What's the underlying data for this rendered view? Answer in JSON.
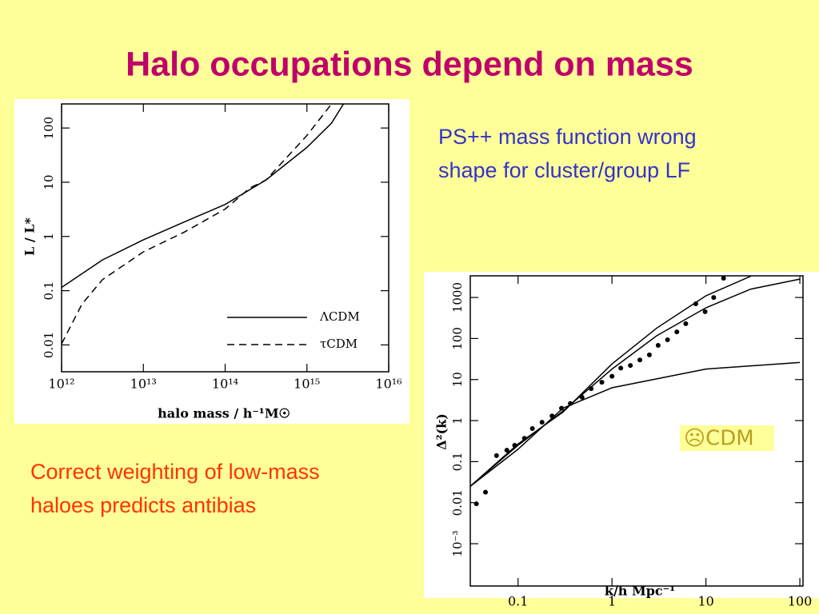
{
  "title": "Halo occupations depend on mass",
  "note_right": [
    "PS++ mass function wrong",
    "shape for cluster/group LF"
  ],
  "note_left": [
    "Correct weighting of low-mass",
    "haloes predicts antibias"
  ],
  "chart_data": [
    {
      "type": "line",
      "xscale": "log",
      "yscale": "log",
      "xlabel": "halo mass / h⁻¹M☉",
      "ylabel": "L / L*",
      "xlim": [
        1000000000000.0,
        1e+16
      ],
      "ylim": [
        0.0032,
        278
      ],
      "xticks": [
        {
          "value": 1000000000000.0,
          "label": "10¹²"
        },
        {
          "value": 10000000000000.0,
          "label": "10¹³"
        },
        {
          "value": 100000000000000.0,
          "label": "10¹⁴"
        },
        {
          "value": 1000000000000000.0,
          "label": "10¹⁵"
        },
        {
          "value": 1e+16,
          "label": "10¹⁶"
        }
      ],
      "yticks": [
        0.01,
        0.1,
        1,
        10,
        100
      ],
      "legend": "lower right",
      "series": [
        {
          "name": "ΛCDM",
          "color": "#000000",
          "dash": false,
          "x": [
            1000000000000.0,
            3160000000000.0,
            10000000000000.0,
            31600000000000.0,
            100000000000000.0,
            316000000000000.0,
            1000000000000000.0,
            2000000000000000.0,
            2800000000000000.0
          ],
          "values": [
            0.115,
            0.37,
            0.87,
            1.85,
            3.9,
            11,
            44,
            123,
            278
          ]
        },
        {
          "name": "τCDM",
          "color": "#000000",
          "dash": true,
          "x": [
            1000000000000.0,
            1780000000000.0,
            3160000000000.0,
            10000000000000.0,
            31600000000000.0,
            100000000000000.0,
            200000000000000.0,
            316000000000000.0,
            1000000000000000.0,
            2000000000000000.0
          ],
          "values": [
            0.0105,
            0.057,
            0.16,
            0.52,
            1.2,
            3.2,
            7.8,
            11,
            73,
            278
          ]
        }
      ]
    },
    {
      "type": "line",
      "xscale": "log",
      "yscale": "log",
      "xlabel": "k/h Mpc⁻¹",
      "ylabel": "Δ²(k)",
      "annotation": "☹CDM",
      "xlim": [
        0.031,
        108
      ],
      "ylim": [
        9.3e-05,
        3370
      ],
      "xticks": [
        0.1,
        1,
        10,
        100
      ],
      "yticks": [
        {
          "value": 0.001,
          "label": "10⁻³"
        },
        0.01,
        0.1,
        1,
        10,
        100,
        1000
      ],
      "series": [
        {
          "color": "#000000",
          "x": [
            0.031,
            0.1,
            0.3,
            1,
            10,
            100
          ],
          "values": [
            0.025,
            0.2,
            2,
            6.3,
            18,
            26
          ]
        },
        {
          "color": "#000000",
          "x": [
            0.031,
            0.1,
            0.3,
            1,
            3,
            10,
            30
          ],
          "values": [
            0.025,
            0.27,
            1.6,
            24,
            180,
            1100,
            3300
          ]
        },
        {
          "color": "#000000",
          "x": [
            0.031,
            0.1,
            0.3,
            1,
            3,
            10,
            30,
            100
          ],
          "values": [
            0.025,
            0.25,
            1.7,
            18,
            117,
            560,
            1600,
            2800
          ]
        },
        {
          "type": "scatter",
          "color": "#000000",
          "x": [
            0.036,
            0.045,
            0.059,
            0.076,
            0.092,
            0.117,
            0.142,
            0.18,
            0.23,
            0.29,
            0.36,
            0.48,
            0.6,
            0.78,
            1.0,
            1.24,
            1.57,
            1.98,
            2.5,
            3.1,
            3.9,
            4.9,
            6.1,
            7.8,
            9.8,
            12.1,
            15.4
          ],
          "values": [
            0.0094,
            0.018,
            0.14,
            0.19,
            0.25,
            0.37,
            0.64,
            0.91,
            1.3,
            2.0,
            2.6,
            3.7,
            6.0,
            8.6,
            12,
            19,
            22,
            30,
            40,
            68,
            93,
            145,
            230,
            700,
            450,
            1000,
            2950
          ]
        }
      ]
    }
  ]
}
